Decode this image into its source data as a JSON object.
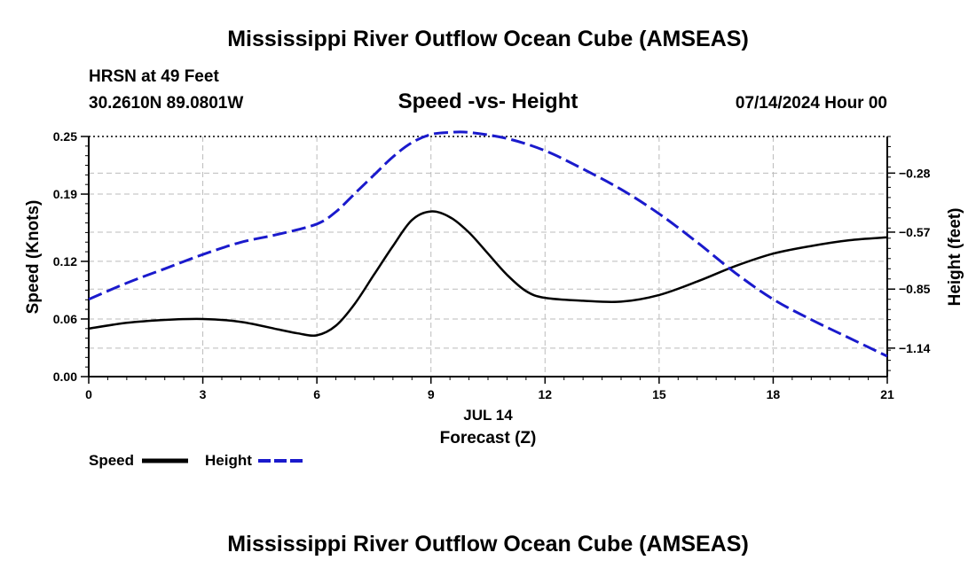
{
  "header": {
    "title": "Mississippi River Outflow Ocean Cube (AMSEAS)",
    "station": "HRSN at 49 Feet",
    "coords": "30.2610N  89.0801W",
    "subtitle": "Speed -vs- Height",
    "datetime": "07/14/2024 Hour 00"
  },
  "footer": {
    "title": "Mississippi River Outflow Ocean Cube (AMSEAS)"
  },
  "legend": {
    "speed_label": "Speed",
    "height_label": "Height"
  },
  "colors": {
    "speed": "#000000",
    "height": "#1a1acc",
    "grid": "#bbbbbb"
  },
  "chart_data": {
    "type": "line",
    "title": "Speed -vs- Height",
    "xlabel": "Forecast (Z)",
    "xlabel_date": "JUL 14",
    "ylabel_left": "Speed (Knots)",
    "ylabel_right": "Height (feet)",
    "xlim": [
      0,
      21
    ],
    "x_ticks": [
      0,
      3,
      6,
      9,
      12,
      15,
      18,
      21
    ],
    "x_tick_labels": [
      "0",
      "3",
      "6",
      "9",
      "12",
      "15",
      "18",
      "21"
    ],
    "ylim_left": [
      0,
      0.25
    ],
    "y_left_ticks": [
      0.0,
      0.06,
      0.12,
      0.19,
      0.25
    ],
    "y_left_tick_labels": [
      "0.00",
      "0.06",
      "0.12",
      "0.19",
      "0.25"
    ],
    "ylim_right": [
      -1.28,
      -0.1
    ],
    "y_right_ticks": [
      -0.28,
      -0.57,
      -0.85,
      -1.14
    ],
    "y_right_tick_labels": [
      "−0.28",
      "−0.57",
      "−0.85",
      "−1.14"
    ],
    "series": [
      {
        "name": "Speed",
        "axis": "left",
        "style": "solid",
        "x": [
          0,
          1,
          2,
          3,
          4,
          5,
          5.5,
          6,
          6.5,
          7,
          7.5,
          8,
          8.5,
          9,
          9.5,
          10,
          10.5,
          11,
          11.5,
          12,
          13,
          14,
          15,
          16,
          17,
          18,
          19,
          20,
          21
        ],
        "values": [
          0.05,
          0.056,
          0.059,
          0.06,
          0.057,
          0.049,
          0.045,
          0.043,
          0.053,
          0.076,
          0.106,
          0.136,
          0.163,
          0.172,
          0.166,
          0.15,
          0.128,
          0.106,
          0.089,
          0.082,
          0.079,
          0.078,
          0.085,
          0.099,
          0.115,
          0.128,
          0.136,
          0.142,
          0.145
        ]
      },
      {
        "name": "Height",
        "axis": "right",
        "style": "dashed",
        "x": [
          0,
          1,
          2,
          3,
          4,
          5,
          6,
          6.5,
          7,
          7.5,
          8,
          8.5,
          9,
          9.5,
          10,
          11,
          12,
          13,
          14,
          15,
          16,
          17,
          18,
          19,
          20,
          21
        ],
        "values": [
          -0.9,
          -0.82,
          -0.75,
          -0.68,
          -0.62,
          -0.58,
          -0.53,
          -0.47,
          -0.38,
          -0.29,
          -0.2,
          -0.13,
          -0.09,
          -0.08,
          -0.08,
          -0.11,
          -0.17,
          -0.26,
          -0.36,
          -0.48,
          -0.62,
          -0.77,
          -0.9,
          -1.0,
          -1.09,
          -1.18
        ]
      }
    ]
  }
}
